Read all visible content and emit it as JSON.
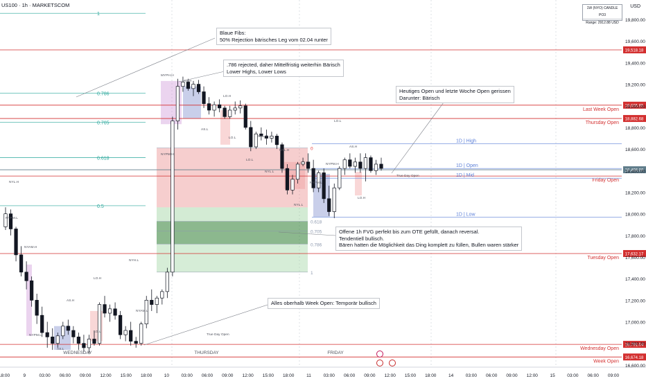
{
  "header": {
    "symbol": "US100 · 1h · MARKETSCOM",
    "currency": "USD",
    "range_box": {
      "title": "1W (NYO) CANDLE PO3",
      "range": "Range: 2912.88 USD"
    }
  },
  "chart_data": {
    "type": "candlestick",
    "ylim": [
      16580,
      19980
    ],
    "price_ticks": [
      19800,
      19600,
      19400,
      19200,
      19000,
      18800,
      18600,
      18400,
      18200,
      18000,
      17800,
      17600,
      17400,
      17200,
      17000,
      16800,
      16600
    ],
    "price_tick_labels": [
      "19,800.00",
      "19,600.00",
      "19,400.00",
      "19,200.00",
      "19,000.00",
      "18,800.00",
      "18,600.00",
      "18,400.00",
      "18,200.00",
      "18,000.00",
      "17,800.00",
      "17,600.00",
      "17,400.00",
      "17,200.00",
      "17,000.00",
      "16,800.00",
      "16,600.00"
    ],
    "time_labels": [
      "18:00",
      "9",
      "03:00",
      "06:00",
      "09:00",
      "12:00",
      "15:00",
      "18:00",
      "10",
      "03:00",
      "06:00",
      "09:00",
      "12:00",
      "15:00",
      "18:00",
      "11",
      "03:00",
      "06:00",
      "09:00",
      "12:00",
      "15:00",
      "18:00",
      "14",
      "03:00",
      "06:00",
      "09:00",
      "12:00",
      "15",
      "03:00",
      "06:00",
      "09:00"
    ],
    "day_labels": [
      "WEDNESDAY",
      "THURSDAY",
      "FRIDAY"
    ],
    "candles": [
      [
        17880,
        18060,
        17850,
        18000
      ],
      [
        18000,
        18040,
        17800,
        17860
      ],
      [
        17860,
        17880,
        17560,
        17620
      ],
      [
        17620,
        17700,
        17420,
        17460
      ],
      [
        17460,
        17560,
        17300,
        17380
      ],
      [
        17380,
        17420,
        17140,
        17200
      ],
      [
        17200,
        17260,
        16980,
        17060
      ],
      [
        17060,
        17140,
        16860,
        16900
      ],
      [
        16900,
        17000,
        16760,
        16860
      ],
      [
        16860,
        16940,
        16740,
        16800
      ],
      [
        16800,
        16900,
        16760,
        16870
      ],
      [
        16870,
        17000,
        16840,
        16960
      ],
      [
        16960,
        17020,
        16880,
        16920
      ],
      [
        16920,
        16960,
        16800,
        16860
      ],
      [
        16860,
        16900,
        16740,
        16800
      ],
      [
        16800,
        16880,
        16720,
        16760
      ],
      [
        16760,
        16880,
        16700,
        16840
      ],
      [
        16840,
        16920,
        16780,
        16800
      ],
      [
        16800,
        17180,
        16780,
        17160
      ],
      [
        17160,
        17240,
        17040,
        17080
      ],
      [
        17080,
        17160,
        17000,
        17120
      ],
      [
        17120,
        17180,
        17020,
        17060
      ],
      [
        17060,
        17100,
        16840,
        16880
      ],
      [
        16880,
        16960,
        16820,
        16920
      ],
      [
        16920,
        17000,
        16780,
        16820
      ],
      [
        16820,
        16860,
        16760,
        16800
      ],
      [
        16800,
        17000,
        16780,
        16980
      ],
      [
        16980,
        17240,
        16940,
        17200
      ],
      [
        17200,
        17300,
        17100,
        17160
      ],
      [
        17160,
        17240,
        17080,
        17220
      ],
      [
        17220,
        17300,
        17160,
        17280
      ],
      [
        17280,
        17500,
        17220,
        17460
      ],
      [
        17460,
        18900,
        17420,
        18860
      ],
      [
        18860,
        19250,
        18780,
        19180
      ],
      [
        19180,
        19270,
        19130,
        19220
      ],
      [
        19220,
        19250,
        19140,
        19160
      ],
      [
        19160,
        19230,
        19090,
        19200
      ],
      [
        19200,
        19240,
        19110,
        19130
      ],
      [
        19130,
        19180,
        18980,
        19020
      ],
      [
        19020,
        19080,
        18920,
        18960
      ],
      [
        18960,
        19040,
        18900,
        19010
      ],
      [
        19010,
        19060,
        18940,
        18980
      ],
      [
        18980,
        19000,
        18880,
        18900
      ],
      [
        18900,
        19000,
        18880,
        18960
      ],
      [
        18960,
        19040,
        18920,
        18980
      ],
      [
        18980,
        19050,
        18930,
        19000
      ],
      [
        19000,
        19020,
        18780,
        18800
      ],
      [
        18800,
        18860,
        18580,
        18620
      ],
      [
        18620,
        18760,
        18600,
        18740
      ],
      [
        18740,
        18800,
        18680,
        18720
      ],
      [
        18720,
        18780,
        18640,
        18700
      ],
      [
        18700,
        18760,
        18660,
        18720
      ],
      [
        18720,
        18740,
        18600,
        18640
      ],
      [
        18640,
        18660,
        18380,
        18420
      ],
      [
        18420,
        18460,
        18180,
        18220
      ],
      [
        18220,
        18360,
        18180,
        18320
      ],
      [
        18320,
        18480,
        18280,
        18460
      ],
      [
        18460,
        18520,
        18440,
        18480
      ],
      [
        18480,
        18560,
        18380,
        18420
      ],
      [
        18420,
        18500,
        18200,
        18240
      ],
      [
        18240,
        18400,
        18200,
        18380
      ],
      [
        18380,
        18420,
        18100,
        18140
      ],
      [
        18140,
        18260,
        17980,
        18020
      ],
      [
        18020,
        18280,
        17960,
        18240
      ],
      [
        18240,
        18440,
        18220,
        18420
      ],
      [
        18420,
        18520,
        18360,
        18500
      ],
      [
        18500,
        18560,
        18420,
        18440
      ],
      [
        18440,
        18520,
        18380,
        18480
      ],
      [
        18480,
        18560,
        18380,
        18420
      ],
      [
        18420,
        18560,
        18300,
        18520
      ],
      [
        18520,
        18540,
        18380,
        18400
      ],
      [
        18400,
        18500,
        18360,
        18460
      ],
      [
        18460,
        18520,
        18400,
        18420
      ]
    ],
    "levels": [
      {
        "price": 19518.18,
        "label": "",
        "tag": "19,518.18",
        "color": "#d32f2f"
      },
      {
        "price": 19005.95,
        "label": "Last Week Open",
        "tag": "19,005.95",
        "color": "#d32f2f"
      },
      {
        "price": 18882.68,
        "label": "Thursday Open",
        "tag": "18,882.68",
        "color": "#d32f2f"
      },
      {
        "price": 18408.0,
        "label": "",
        "tag": "18,408.00",
        "color": "#607d8b"
      },
      {
        "price": 18350,
        "label": "Friday Open",
        "tag": "",
        "color": "#d32f2f"
      },
      {
        "price": 17632.17,
        "label": "Tuesday Open",
        "tag": "17,632.17",
        "color": "#d32f2f"
      },
      {
        "price": 16791.04,
        "label": "Wednesday Open",
        "tag": "16,791.04",
        "color": "#d32f2f"
      },
      {
        "price": 16674.18,
        "label": "Week Open",
        "tag": "16,674.18",
        "color": "#d32f2f"
      }
    ],
    "fib_left": [
      {
        "price": 19857,
        "label": "1"
      },
      {
        "price": 19116,
        "label": "0.786"
      },
      {
        "price": 18849,
        "label": "0.705"
      },
      {
        "price": 18520,
        "label": "0.618"
      },
      {
        "price": 18075,
        "label": "0.5"
      }
    ],
    "fib_right": [
      {
        "price": 18610,
        "label": "0"
      },
      {
        "price": 17930,
        "label": "0.618"
      },
      {
        "price": 17840,
        "label": "0.705"
      },
      {
        "price": 17720,
        "label": "0.786"
      },
      {
        "price": 17460,
        "label": "1"
      }
    ],
    "day_levels": [
      {
        "price": 18650,
        "label": "1D | High",
        "color": "#5b7fd8"
      },
      {
        "price": 18420,
        "label": "1D | Open",
        "color": "#5b7fd8"
      },
      {
        "price": 18330,
        "label": "1D | Mid",
        "color": "#5b7fd8"
      },
      {
        "price": 17970,
        "label": "1D | Low",
        "color": "#5b7fd8"
      }
    ],
    "small_labels": [
      "MYPH.H",
      "AS.H",
      "LO.H",
      "AS.L",
      "LO.L",
      "NYAM.H",
      "NYPM.L",
      "NYPM.H",
      "NYL.H",
      "AS.L",
      "LO.L",
      "LO.H",
      "AS.H",
      "NYAM.L",
      "NYH.L",
      "NYL.H",
      "NYPM.L",
      "NYL.L",
      "NYL.H",
      "NYL.L",
      "LO.L",
      "NYPM.L",
      "NYPM.H",
      "AS.H",
      "LO.H",
      "LO.L",
      "True Day Open",
      "True Day Open",
      "True Day Open"
    ],
    "price_tag_extra": "11:52"
  },
  "annotations": [
    {
      "text": "Blaue Fibs:\n50% Rejection bärisches Leg vom 02.04 runter"
    },
    {
      "text": ".786 rejected, daher Mittelfristig weiterhin Bärisch\nLower Highs, Lower Lows"
    },
    {
      "text": "Heutiges Open und letzte Woche Open gerissen\nDarunter: Bärisch"
    },
    {
      "text": "Offene 1h FVG perfekt bis zum OTE gefüllt, danach reversal.\nTendentiell bullisch.\nBären hatten die Möglichkeit das Ding komplett zu füllen, Bullen waren stärker"
    },
    {
      "text": "Alles oberhalb Week Open: Temporär bullisch"
    }
  ],
  "colors": {
    "up": "#ffffff",
    "down": "#131722",
    "level": "#d32f2f",
    "fib": "#26a69a"
  }
}
